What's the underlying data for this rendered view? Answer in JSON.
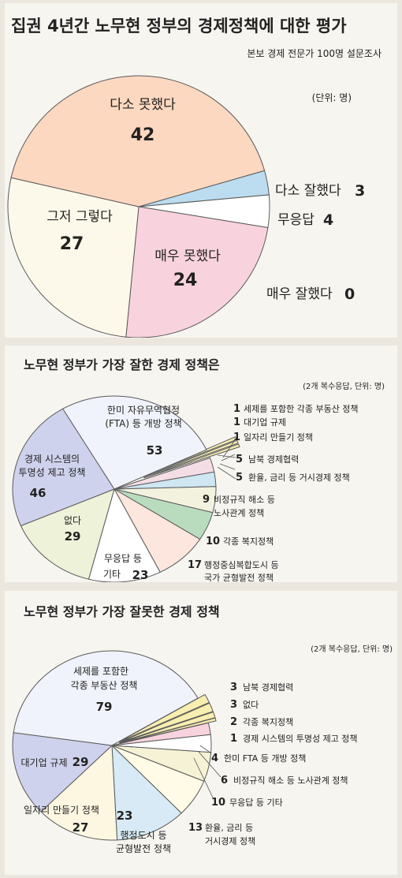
{
  "charts": [
    {
      "type": "pie",
      "title": "집권 4년간 노무현 정부의 경제정책에 대한 평가",
      "subtitle": "본보 경제 전문가 100명 설문조사",
      "unit_note": "(단위: 명)",
      "slices": [
        {
          "label": "다소 잘했다",
          "value": 3,
          "color": "#bcdcef"
        },
        {
          "label": "무응답",
          "value": 4,
          "color": "#ffffff"
        },
        {
          "label": "매우 못했다",
          "value": 24,
          "color": "#f8d3dd"
        },
        {
          "label": "그저 그렇다",
          "value": 27,
          "color": "#fdf9ea"
        },
        {
          "label": "다소 못했다",
          "value": 42,
          "color": "#fdd8c0"
        },
        {
          "label": "매우 잘했다",
          "value": 0,
          "color": "#ffffff"
        }
      ]
    },
    {
      "type": "pie",
      "title": "노무현 정부가 가장 잘한 경제 정책은",
      "unit_note": "(2개 복수응답, 단위: 명)",
      "slices": [
        {
          "label": "세제를 포함한 각종 부동산 정책",
          "value": 1,
          "color": "#f7eeb0"
        },
        {
          "label": "대기업 규제",
          "value": 1,
          "color": "#f7eeb0"
        },
        {
          "label": "일자리 만들기 정책",
          "value": 1,
          "color": "#f7eeb0"
        },
        {
          "label": "남북 경제협력",
          "value": 5,
          "color": "#f5dde6"
        },
        {
          "label": "환율, 금리 등 거시경제 정책",
          "value": 5,
          "color": "#cfe6f3"
        },
        {
          "label": "비정규직 해소 등 노사관계 정책",
          "value": 9,
          "color": "#f2f2df"
        },
        {
          "label": "각종 복지정책",
          "value": 10,
          "color": "#b9dcbf"
        },
        {
          "label": "행정중심복합도시 등 국가 균형발전 정책",
          "value": 17,
          "color": "#fce6de"
        },
        {
          "label": "무응답 등 기타",
          "value": 23,
          "color": "#ffffff"
        },
        {
          "label": "없다",
          "value": 29,
          "color": "#eef2d8"
        },
        {
          "label": "경제 시스템의 투명성 제고 정책",
          "value": 46,
          "color": "#cfd2ec"
        },
        {
          "label": "한미 자유무역협정 (FTA) 등 개방 정책",
          "value": 53,
          "color": "#f0f3fb"
        }
      ]
    },
    {
      "type": "pie",
      "title": "노무현 정부가 가장 잘못한 경제 정책",
      "unit_note": "(2개 복수응답, 단위: 명)",
      "slices": [
        {
          "label": "남북 경제협력",
          "value": 3,
          "color": "#f7eeb0"
        },
        {
          "label": "없다",
          "value": 3,
          "color": "#f7eeb0"
        },
        {
          "label": "각종 복지정책",
          "value": 2,
          "color": "#f7eeb0"
        },
        {
          "label": "경제 시스템의 투명성 제고 정책",
          "value": 1,
          "color": "#f7eeb0"
        },
        {
          "label": "한미 FTA 등 개방 정책",
          "value": 4,
          "color": "#f8d3dd"
        },
        {
          "label": "비정규직 해소 등 노사관계 정책",
          "value": 6,
          "color": "#ffffff"
        },
        {
          "label": "무응답 등 기타",
          "value": 10,
          "color": "#f5f2d6"
        },
        {
          "label": "환율, 금리 등 거시경제 정책",
          "value": 13,
          "color": "#fffbe6"
        },
        {
          "label": "행정도시 등 균형발전 정책",
          "value": 23,
          "color": "#d7eaf5"
        },
        {
          "label": "일자리 만들기 정책",
          "value": 27,
          "color": "#fdf7e2"
        },
        {
          "label": "대기업 규제",
          "value": 29,
          "color": "#cfd2ec"
        },
        {
          "label": "세제를 포함한 각종 부동산 정책",
          "value": 79,
          "color": "#f0f3fb"
        }
      ]
    }
  ],
  "p1": {
    "l_somewhat_bad": "다소 못했다",
    "v_somewhat_bad": "42",
    "l_so_so": "그저 그렇다",
    "v_so_so": "27",
    "l_very_bad": "매우 못했다",
    "v_very_bad": "24",
    "l_somewhat_good": "다소 잘했다",
    "v_somewhat_good": "3",
    "l_no_answer": "무응답",
    "v_no_answer": "4",
    "l_very_good": "매우 잘했다",
    "v_very_good": "0"
  },
  "p2": {
    "fta_l1": "한미 자유무역협정",
    "fta_l2": "(FTA) 등 개방 정책",
    "fta_v": "53",
    "tr_l1": "경제 시스템의",
    "tr_l2": "투명성 제고 정책",
    "tr_v": "46",
    "none_l": "없다",
    "none_v": "29",
    "na_l1": "무응답 등",
    "na_l2": "기타",
    "na_v": "23",
    "re_v": "1",
    "re_l": "세제를 포함한 각종 부동산 정책",
    "big_v": "1",
    "big_l": "대기업 규제",
    "job_v": "1",
    "job_l": "일자리 만들기 정책",
    "nk_v": "5",
    "nk_l": "남북 경제협력",
    "mac_v": "5",
    "mac_l": "환율, 금리 등 거시경제 정책",
    "lab_v": "9",
    "lab_l1": "비정규직 해소 등",
    "lab_l2": "노사관계 정책",
    "wel_v": "10",
    "wel_l": "각종 복지정책",
    "bal_v": "17",
    "bal_l1": "행정중심복합도시 등",
    "bal_l2": "국가 균형발전 정책"
  },
  "p3": {
    "re_l1": "세제를 포함한",
    "re_l2": "각종 부동산 정책",
    "re_v": "79",
    "big_l": "대기업 규제",
    "big_v": "29",
    "job_l": "일자리 만들기 정책",
    "job_v": "27",
    "adm_v": "23",
    "adm_l1": "행정도시 등",
    "adm_l2": "균형발전 정책",
    "nk_v": "3",
    "nk_l": "남북 경제협력",
    "none_v": "3",
    "none_l": "없다",
    "wel_v": "2",
    "wel_l": "각종 복지정책",
    "tr_v": "1",
    "tr_l": "경제 시스템의 투명성 제고 정책",
    "fta_v": "4",
    "fta_l": "한미 FTA 등 개방 정책",
    "lab_v": "6",
    "lab_l": "비정규직 해소 등 노사관계 정책",
    "na_v": "10",
    "na_l": "무응답 등 기타",
    "mac_v": "13",
    "mac_l1": "환율, 금리 등",
    "mac_l2": "거시경제 정책"
  }
}
